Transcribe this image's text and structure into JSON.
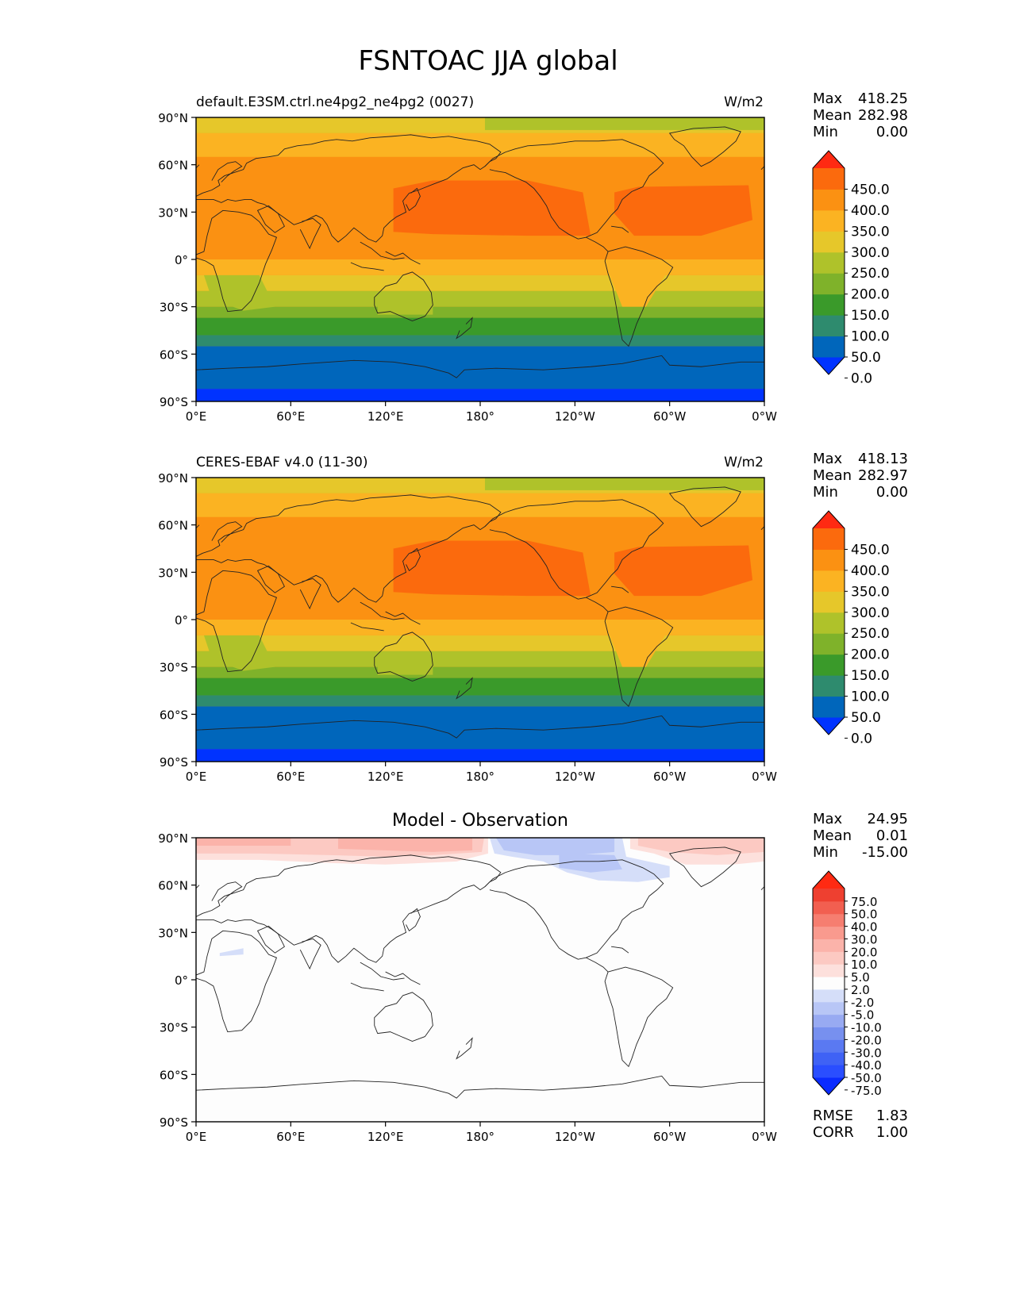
{
  "figure": {
    "title": "FSNTOAC JJA global"
  },
  "axes": {
    "lat_ticks": [
      "90°N",
      "60°N",
      "30°N",
      "0°",
      "30°S",
      "60°S",
      "90°S"
    ],
    "lon_ticks": [
      "0°E",
      "60°E",
      "120°E",
      "180°",
      "120°W",
      "60°W",
      "0°W"
    ]
  },
  "panels": [
    {
      "id": "test",
      "left_title": "default.E3SM.ctrl.ne4pg2_ne4pg2 (0027)",
      "center_title": "",
      "units": "W/m2",
      "stats": [
        {
          "label": "Max",
          "value": "418.25"
        },
        {
          "label": "Mean",
          "value": "282.98"
        },
        {
          "label": "Min",
          "value": "0.00"
        }
      ],
      "colorbar_labels": [
        "450.0",
        "400.0",
        "350.0",
        "300.0",
        "250.0",
        "200.0",
        "150.0",
        "100.0",
        "50.0",
        "0.0"
      ],
      "footer_stats": []
    },
    {
      "id": "reference",
      "left_title": "CERES-EBAF v4.0 (11-30)",
      "center_title": "",
      "units": "W/m2",
      "stats": [
        {
          "label": "Max",
          "value": "418.13"
        },
        {
          "label": "Mean",
          "value": "282.97"
        },
        {
          "label": "Min",
          "value": "0.00"
        }
      ],
      "colorbar_labels": [
        "450.0",
        "400.0",
        "350.0",
        "300.0",
        "250.0",
        "200.0",
        "150.0",
        "100.0",
        "50.0",
        "0.0"
      ],
      "footer_stats": []
    },
    {
      "id": "diff",
      "left_title": "",
      "center_title": "Model - Observation",
      "units": "",
      "stats": [
        {
          "label": "Max",
          "value": "24.95"
        },
        {
          "label": "Mean",
          "value": "0.01"
        },
        {
          "label": "Min",
          "value": "-15.00"
        }
      ],
      "colorbar_labels": [
        "75.0",
        "50.0",
        "40.0",
        "30.0",
        "20.0",
        "10.0",
        "5.0",
        "2.0",
        "-2.0",
        "-5.0",
        "-10.0",
        "-20.0",
        "-30.0",
        "-40.0",
        "-50.0",
        "-75.0"
      ],
      "footer_stats": [
        {
          "label": "RMSE",
          "value": "1.83"
        },
        {
          "label": "CORR",
          "value": "1.00"
        }
      ]
    }
  ],
  "chart_data": [
    {
      "type": "heatmap",
      "title": "default.E3SM.ctrl.ne4pg2_ne4pg2 (0027)",
      "units": "W/m2",
      "xlim": [
        0,
        360
      ],
      "ylim": [
        -90,
        90
      ],
      "levels": [
        0,
        50,
        100,
        150,
        200,
        250,
        300,
        350,
        400,
        450
      ],
      "colors": [
        "#0033ff",
        "#0066bb",
        "#2e8b6e",
        "#3a9a2a",
        "#7fb22a",
        "#afc22a",
        "#e6c72a",
        "#fbb322",
        "#fb9112",
        "#fb6a0d",
        "#ff2a12"
      ],
      "zonal_profile": [
        {
          "lat": 85,
          "value": 300
        },
        {
          "lat": 75,
          "value": 350
        },
        {
          "lat": 65,
          "value": 350
        },
        {
          "lat": 55,
          "value": 350
        },
        {
          "lat": 45,
          "value": 350
        },
        {
          "lat": 35,
          "value": 350
        },
        {
          "lat": 25,
          "value": 350
        },
        {
          "lat": 15,
          "value": 350
        },
        {
          "lat": 5,
          "value": 320
        },
        {
          "lat": -5,
          "value": 300
        },
        {
          "lat": -15,
          "value": 260
        },
        {
          "lat": -25,
          "value": 220
        },
        {
          "lat": -35,
          "value": 180
        },
        {
          "lat": -45,
          "value": 130
        },
        {
          "lat": -55,
          "value": 80
        },
        {
          "lat": -65,
          "value": 30
        },
        {
          "lat": -75,
          "value": 20
        },
        {
          "lat": -85,
          "value": 0
        }
      ],
      "stats": {
        "max": 418.25,
        "mean": 282.98,
        "min": 0.0
      }
    },
    {
      "type": "heatmap",
      "title": "CERES-EBAF v4.0 (11-30)",
      "units": "W/m2",
      "xlim": [
        0,
        360
      ],
      "ylim": [
        -90,
        90
      ],
      "levels": [
        0,
        50,
        100,
        150,
        200,
        250,
        300,
        350,
        400,
        450
      ],
      "colors": [
        "#0033ff",
        "#0066bb",
        "#2e8b6e",
        "#3a9a2a",
        "#7fb22a",
        "#afc22a",
        "#e6c72a",
        "#fbb322",
        "#fb9112",
        "#fb6a0d",
        "#ff2a12"
      ],
      "zonal_profile": [
        {
          "lat": 85,
          "value": 300
        },
        {
          "lat": 75,
          "value": 350
        },
        {
          "lat": 65,
          "value": 350
        },
        {
          "lat": 55,
          "value": 350
        },
        {
          "lat": 45,
          "value": 350
        },
        {
          "lat": 35,
          "value": 350
        },
        {
          "lat": 25,
          "value": 350
        },
        {
          "lat": 15,
          "value": 350
        },
        {
          "lat": 5,
          "value": 320
        },
        {
          "lat": -5,
          "value": 300
        },
        {
          "lat": -15,
          "value": 260
        },
        {
          "lat": -25,
          "value": 220
        },
        {
          "lat": -35,
          "value": 180
        },
        {
          "lat": -45,
          "value": 130
        },
        {
          "lat": -55,
          "value": 80
        },
        {
          "lat": -65,
          "value": 30
        },
        {
          "lat": -75,
          "value": 20
        },
        {
          "lat": -85,
          "value": 0
        }
      ],
      "stats": {
        "max": 418.13,
        "mean": 282.97,
        "min": 0.0
      }
    },
    {
      "type": "heatmap",
      "title": "Model - Observation",
      "xlim": [
        0,
        360
      ],
      "ylim": [
        -90,
        90
      ],
      "levels": [
        -75,
        -50,
        -40,
        -30,
        -20,
        -10,
        -5,
        -2,
        2,
        5,
        10,
        20,
        30,
        40,
        50,
        75
      ],
      "colors": [
        "#0a2bff",
        "#2a4eff",
        "#3f62f5",
        "#5a79f2",
        "#7790ef",
        "#98aaf2",
        "#b8c6f6",
        "#d5def9",
        "#fdfdfd",
        "#fde0dc",
        "#fcc9c2",
        "#fbb3aa",
        "#f99a8e",
        "#f67e70",
        "#f25f50",
        "#ee4030",
        "#ff2a12"
      ],
      "stats": {
        "max": 24.95,
        "mean": 0.01,
        "min": -15.0,
        "rmse": 1.83,
        "corr": 1.0
      }
    }
  ]
}
